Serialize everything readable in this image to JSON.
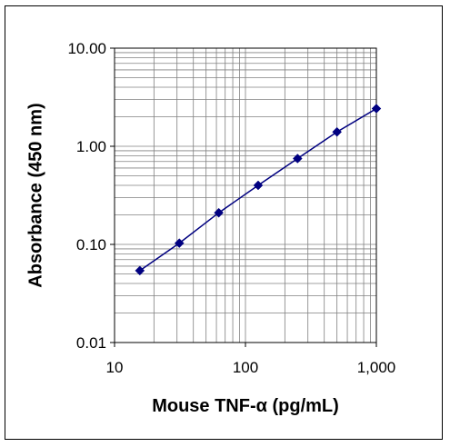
{
  "chart_data": {
    "type": "line",
    "xlabel": "Mouse TNF-α (pg/mL)",
    "ylabel": "Absorbance (450 nm)",
    "x_scale": "log",
    "y_scale": "log",
    "xlim": [
      10,
      1000
    ],
    "ylim": [
      0.01,
      10
    ],
    "x_ticks": [
      {
        "value": 10,
        "label": "10"
      },
      {
        "value": 100,
        "label": "100"
      },
      {
        "value": 1000,
        "label": "1,000"
      }
    ],
    "y_ticks": [
      {
        "value": 0.01,
        "label": "0.01"
      },
      {
        "value": 0.1,
        "label": "0.10"
      },
      {
        "value": 1,
        "label": "1.00"
      },
      {
        "value": 10,
        "label": "10.00"
      }
    ],
    "grid": true,
    "legend": "none",
    "marker": "diamond",
    "series_color": "#000080",
    "series": [
      {
        "x": [
          15.6,
          31.25,
          62.5,
          125,
          250,
          500,
          1000
        ],
        "y": [
          0.054,
          0.103,
          0.21,
          0.4,
          0.75,
          1.4,
          2.42
        ]
      }
    ]
  }
}
